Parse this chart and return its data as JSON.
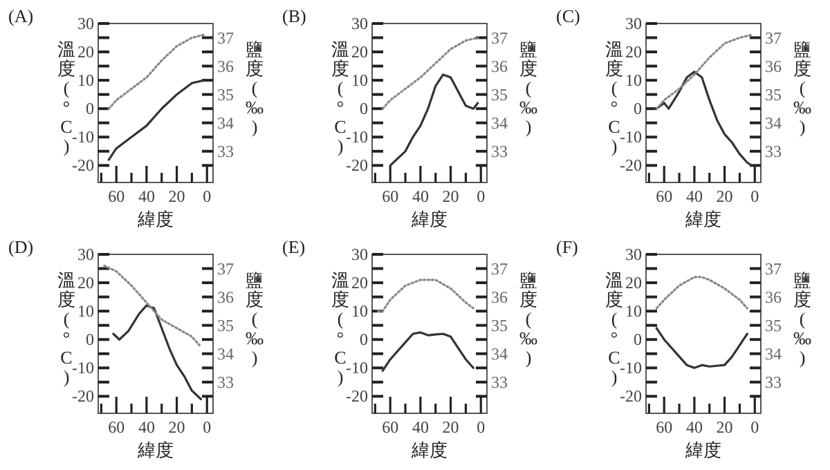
{
  "chart_data": [
    {
      "type": "line",
      "title": "(A)",
      "xlabel": "緯度",
      "ylabel": "溫度(°C)",
      "y2label": "鹽度(‰)",
      "xlim": [
        72,
        -4
      ],
      "xticks": [
        {
          "value": 70,
          "label": null
        },
        60,
        {
          "value": 50,
          "label": null
        },
        40,
        {
          "value": 30,
          "label": null
        },
        20,
        {
          "value": 10,
          "label": null
        },
        0
      ],
      "ylim": [
        -26,
        30
      ],
      "yticks": [
        -20,
        {
          "value": -15,
          "label": null
        },
        -10,
        {
          "value": -5,
          "label": null
        },
        0,
        {
          "value": 5,
          "label": null
        },
        10,
        {
          "value": 15,
          "label": null
        },
        20,
        {
          "value": 25,
          "label": null
        },
        30
      ],
      "y2lim": [
        31.9,
        37.5
      ],
      "y2ticks": [
        {
          "value": 32.5,
          "label": null
        },
        33,
        {
          "value": 33.5,
          "label": null
        },
        34,
        {
          "value": 34.5,
          "label": null
        },
        35,
        {
          "value": 35.5,
          "label": null
        },
        36,
        {
          "value": 36.5,
          "label": null
        },
        37
      ],
      "series": [
        {
          "color": "#333333",
          "line_style": "solid",
          "x": [
            65,
            60,
            50,
            40,
            30,
            20,
            10,
            2
          ],
          "values": [
            -18,
            -14,
            -10,
            -6,
            0,
            5,
            9,
            10
          ]
        },
        {
          "axis": "y2",
          "color": "#888888",
          "line_style": "dotted",
          "x": [
            65,
            60,
            50,
            40,
            30,
            20,
            10,
            2
          ],
          "values": [
            34.5,
            34.8,
            35.2,
            35.6,
            36.2,
            36.7,
            37.0,
            37.1
          ]
        }
      ]
    },
    {
      "type": "line",
      "title": "(B)",
      "xlabel": "緯度",
      "ylabel": "溫度(°C)",
      "y2label": "鹽度(‰)",
      "xlim": [
        72,
        -4
      ],
      "xticks": [
        {
          "value": 70,
          "label": null
        },
        60,
        {
          "value": 50,
          "label": null
        },
        40,
        {
          "value": 30,
          "label": null
        },
        20,
        {
          "value": 10,
          "label": null
        },
        0
      ],
      "ylim": [
        -26,
        30
      ],
      "yticks": [
        -20,
        {
          "value": -15,
          "label": null
        },
        -10,
        {
          "value": -5,
          "label": null
        },
        0,
        {
          "value": 5,
          "label": null
        },
        10,
        {
          "value": 15,
          "label": null
        },
        20,
        {
          "value": 25,
          "label": null
        },
        30
      ],
      "y2lim": [
        31.9,
        37.5
      ],
      "y2ticks": [
        {
          "value": 32.5,
          "label": null
        },
        33,
        {
          "value": 33.5,
          "label": null
        },
        34,
        {
          "value": 34.5,
          "label": null
        },
        35,
        {
          "value": 35.5,
          "label": null
        },
        36,
        {
          "value": 36.5,
          "label": null
        },
        37
      ],
      "series": [
        {
          "color": "#333333",
          "line_style": "solid",
          "x": [
            60,
            50,
            45,
            40,
            35,
            30,
            25,
            20,
            15,
            10,
            5,
            2
          ],
          "values": [
            -20,
            -15,
            -10,
            -6,
            0,
            8,
            12,
            11,
            6,
            1,
            0,
            2
          ]
        },
        {
          "axis": "y2",
          "color": "#888888",
          "line_style": "dotted",
          "x": [
            65,
            60,
            50,
            40,
            30,
            20,
            10,
            2
          ],
          "values": [
            34.5,
            34.8,
            35.2,
            35.6,
            36.1,
            36.6,
            36.9,
            37.0
          ]
        }
      ]
    },
    {
      "type": "line",
      "title": "(C)",
      "xlabel": "緯度",
      "ylabel": "溫度(°C)",
      "y2label": "鹽度(‰)",
      "xlim": [
        72,
        -4
      ],
      "xticks": [
        {
          "value": 70,
          "label": null
        },
        60,
        {
          "value": 50,
          "label": null
        },
        40,
        {
          "value": 30,
          "label": null
        },
        20,
        {
          "value": 10,
          "label": null
        },
        0
      ],
      "ylim": [
        -26,
        30
      ],
      "yticks": [
        -20,
        {
          "value": -15,
          "label": null
        },
        -10,
        {
          "value": -5,
          "label": null
        },
        0,
        {
          "value": 5,
          "label": null
        },
        10,
        {
          "value": 15,
          "label": null
        },
        20,
        {
          "value": 25,
          "label": null
        },
        30
      ],
      "y2lim": [
        31.9,
        37.5
      ],
      "y2ticks": [
        {
          "value": 32.5,
          "label": null
        },
        33,
        {
          "value": 33.5,
          "label": null
        },
        34,
        {
          "value": 34.5,
          "label": null
        },
        35,
        {
          "value": 35.5,
          "label": null
        },
        36,
        {
          "value": 36.5,
          "label": null
        },
        37
      ],
      "series": [
        {
          "color": "#333333",
          "line_style": "solid",
          "x": [
            65,
            60,
            57,
            50,
            45,
            40,
            35,
            30,
            25,
            20,
            15,
            10,
            5,
            2
          ],
          "values": [
            0,
            2,
            0,
            6,
            11,
            13,
            11,
            3,
            -4,
            -9,
            -12,
            -16,
            -19,
            -20
          ]
        },
        {
          "axis": "y2",
          "color": "#888888",
          "line_style": "dotted",
          "x": [
            65,
            60,
            50,
            40,
            30,
            20,
            10,
            2
          ],
          "values": [
            34.5,
            34.8,
            35.2,
            35.7,
            36.3,
            36.8,
            37.0,
            37.1
          ]
        }
      ]
    },
    {
      "type": "line",
      "title": "(D)",
      "xlabel": "緯度",
      "ylabel": "溫度(°C)",
      "y2label": "鹽度(‰)",
      "xlim": [
        72,
        -4
      ],
      "xticks": [
        {
          "value": 70,
          "label": null
        },
        60,
        {
          "value": 50,
          "label": null
        },
        40,
        {
          "value": 30,
          "label": null
        },
        20,
        {
          "value": 10,
          "label": null
        },
        0
      ],
      "ylim": [
        -26,
        30
      ],
      "yticks": [
        -20,
        {
          "value": -15,
          "label": null
        },
        -10,
        {
          "value": -5,
          "label": null
        },
        0,
        {
          "value": 5,
          "label": null
        },
        10,
        {
          "value": 15,
          "label": null
        },
        20,
        {
          "value": 25,
          "label": null
        },
        30
      ],
      "y2lim": [
        31.9,
        37.5
      ],
      "y2ticks": [
        {
          "value": 32.5,
          "label": null
        },
        33,
        {
          "value": 33.5,
          "label": null
        },
        34,
        {
          "value": 34.5,
          "label": null
        },
        35,
        {
          "value": 35.5,
          "label": null
        },
        36,
        {
          "value": 36.5,
          "label": null
        },
        37
      ],
      "series": [
        {
          "color": "#333333",
          "line_style": "solid",
          "x": [
            62,
            58,
            52,
            45,
            40,
            35,
            30,
            25,
            20,
            15,
            10,
            4
          ],
          "values": [
            2,
            0,
            3,
            9,
            12,
            11,
            4,
            -3,
            -9,
            -13,
            -18,
            -21
          ]
        },
        {
          "axis": "y2",
          "color": "#888888",
          "line_style": "dotted",
          "x": [
            68,
            60,
            50,
            40,
            35,
            30,
            20,
            10,
            5
          ],
          "values": [
            37.1,
            36.9,
            36.4,
            35.8,
            35.5,
            35.2,
            34.9,
            34.6,
            34.3
          ]
        }
      ]
    },
    {
      "type": "line",
      "title": "(E)",
      "xlabel": "緯度",
      "ylabel": "溫度(°C)",
      "y2label": "鹽度(‰)",
      "xlim": [
        72,
        -4
      ],
      "xticks": [
        {
          "value": 70,
          "label": null
        },
        60,
        {
          "value": 50,
          "label": null
        },
        40,
        {
          "value": 30,
          "label": null
        },
        20,
        {
          "value": 10,
          "label": null
        },
        0
      ],
      "ylim": [
        -26,
        30
      ],
      "yticks": [
        -20,
        {
          "value": -15,
          "label": null
        },
        -10,
        {
          "value": -5,
          "label": null
        },
        0,
        {
          "value": 5,
          "label": null
        },
        10,
        {
          "value": 15,
          "label": null
        },
        20,
        {
          "value": 25,
          "label": null
        },
        30
      ],
      "y2lim": [
        31.9,
        37.5
      ],
      "y2ticks": [
        {
          "value": 32.5,
          "label": null
        },
        33,
        {
          "value": 33.5,
          "label": null
        },
        34,
        {
          "value": 34.5,
          "label": null
        },
        35,
        {
          "value": 35.5,
          "label": null
        },
        36,
        {
          "value": 36.5,
          "label": null
        },
        37
      ],
      "series": [
        {
          "color": "#333333",
          "line_style": "solid",
          "x": [
            65,
            60,
            50,
            45,
            40,
            35,
            30,
            25,
            20,
            15,
            10,
            5
          ],
          "values": [
            -11,
            -7,
            -1,
            2,
            2.5,
            1.5,
            1.8,
            2,
            1,
            -3,
            -7,
            -10
          ]
        },
        {
          "axis": "y2",
          "color": "#888888",
          "line_style": "dotted",
          "x": [
            68,
            65,
            60,
            50,
            40,
            30,
            20,
            10,
            5
          ],
          "values": [
            35.5,
            35.5,
            35.9,
            36.4,
            36.6,
            36.6,
            36.3,
            35.8,
            35.6
          ]
        }
      ]
    },
    {
      "type": "line",
      "title": "(F)",
      "xlabel": "緯度",
      "ylabel": "溫度(°C)",
      "y2label": "鹽度(‰)",
      "xlim": [
        72,
        -4
      ],
      "xticks": [
        {
          "value": 70,
          "label": null
        },
        60,
        {
          "value": 50,
          "label": null
        },
        40,
        {
          "value": 30,
          "label": null
        },
        20,
        {
          "value": 10,
          "label": null
        },
        0
      ],
      "ylim": [
        -26,
        30
      ],
      "yticks": [
        -20,
        {
          "value": -15,
          "label": null
        },
        -10,
        {
          "value": -5,
          "label": null
        },
        0,
        {
          "value": 5,
          "label": null
        },
        10,
        {
          "value": 15,
          "label": null
        },
        20,
        {
          "value": 25,
          "label": null
        },
        30
      ],
      "y2lim": [
        31.9,
        37.5
      ],
      "y2ticks": [
        {
          "value": 32.5,
          "label": null
        },
        33,
        {
          "value": 33.5,
          "label": null
        },
        34,
        {
          "value": 34.5,
          "label": null
        },
        35,
        {
          "value": 35.5,
          "label": null
        },
        36,
        {
          "value": 36.5,
          "label": null
        },
        37
      ],
      "series": [
        {
          "color": "#333333",
          "line_style": "solid",
          "x": [
            65,
            60,
            50,
            45,
            40,
            35,
            30,
            20,
            15,
            10,
            5
          ],
          "values": [
            4,
            0,
            -6,
            -9,
            -10,
            -9,
            -9.5,
            -9,
            -6,
            -2,
            2
          ]
        },
        {
          "axis": "y2",
          "color": "#888888",
          "line_style": "dotted",
          "x": [
            65,
            60,
            50,
            40,
            35,
            30,
            20,
            10,
            5
          ],
          "values": [
            35.6,
            35.9,
            36.4,
            36.7,
            36.7,
            36.6,
            36.3,
            35.9,
            35.6
          ]
        }
      ]
    }
  ]
}
